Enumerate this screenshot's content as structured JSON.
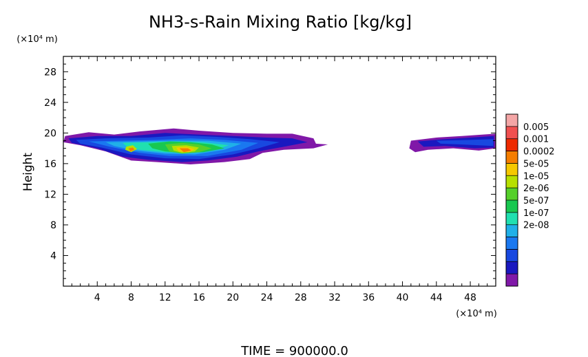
{
  "chart_data": {
    "type": "heatmap",
    "title": "NH3-s-Rain Mixing Ratio [kg/kg]",
    "ylabel": "Height",
    "xlabel": "",
    "y_unit": "(×10⁴ m)",
    "x_unit": "(×10⁴ m)",
    "xlim": [
      0,
      51
    ],
    "ylim": [
      0,
      30
    ],
    "x_ticks": [
      4,
      8,
      12,
      16,
      20,
      24,
      28,
      32,
      36,
      40,
      44,
      48
    ],
    "y_ticks": [
      4,
      8,
      12,
      16,
      20,
      24,
      28
    ],
    "grid": false,
    "legend_position": "right",
    "colorbar": {
      "labels": [
        "0.005",
        "0.001",
        "0.0002",
        "5e-05",
        "1e-05",
        "2e-06",
        "5e-07",
        "1e-07",
        "2e-08"
      ],
      "colors": [
        "#f4a6a6",
        "#f05050",
        "#ee2a00",
        "#f57d00",
        "#f5c800",
        "#b7e000",
        "#55d02a",
        "#18c850",
        "#20e0b0",
        "#20b0e8",
        "#1a78f0",
        "#1848e0",
        "#1a18c0",
        "#8018a8"
      ]
    },
    "contours": [
      {
        "level": 0,
        "points": [
          [
            0.2,
            19.6
          ],
          [
            3,
            20.1
          ],
          [
            6,
            19.8
          ],
          [
            9,
            20.2
          ],
          [
            13,
            20.6
          ],
          [
            16,
            20.3
          ],
          [
            20,
            20.0
          ],
          [
            24,
            19.9
          ],
          [
            27,
            19.9
          ],
          [
            29.5,
            19.3
          ],
          [
            29.8,
            18.6
          ],
          [
            31.2,
            18.5
          ],
          [
            29.5,
            18.0
          ],
          [
            26,
            17.8
          ],
          [
            23.5,
            17.4
          ],
          [
            22,
            16.6
          ],
          [
            19,
            16.2
          ],
          [
            15,
            15.9
          ],
          [
            11,
            16.2
          ],
          [
            8,
            16.4
          ],
          [
            5,
            17.6
          ],
          [
            2,
            18.4
          ],
          [
            0,
            18.8
          ]
        ]
      },
      {
        "level": 0,
        "points": [
          [
            41,
            19.0
          ],
          [
            44,
            19.4
          ],
          [
            47,
            19.6
          ],
          [
            49.5,
            19.8
          ],
          [
            51,
            19.9
          ],
          [
            51,
            18.0
          ],
          [
            49,
            17.7
          ],
          [
            46,
            18.0
          ],
          [
            43,
            17.8
          ],
          [
            41.5,
            17.5
          ],
          [
            40.8,
            18.0
          ]
        ]
      },
      {
        "level": 1,
        "points": [
          [
            0.6,
            19.3
          ],
          [
            4,
            19.6
          ],
          [
            8,
            19.6
          ],
          [
            12,
            20.0
          ],
          [
            16,
            19.8
          ],
          [
            20,
            19.6
          ],
          [
            24,
            19.4
          ],
          [
            27,
            19.3
          ],
          [
            28.8,
            18.8
          ],
          [
            26,
            18.2
          ],
          [
            23,
            17.6
          ],
          [
            20.5,
            16.9
          ],
          [
            17,
            16.4
          ],
          [
            14,
            16.2
          ],
          [
            10,
            16.5
          ],
          [
            7,
            16.9
          ],
          [
            4,
            18.0
          ],
          [
            1,
            18.7
          ]
        ]
      },
      {
        "level": 1,
        "points": [
          [
            41.8,
            18.9
          ],
          [
            45,
            19.2
          ],
          [
            48,
            19.4
          ],
          [
            50.8,
            19.6
          ],
          [
            50.8,
            18.1
          ],
          [
            48.5,
            18.0
          ],
          [
            45,
            18.3
          ],
          [
            42.5,
            18.2
          ]
        ]
      },
      {
        "level": 2,
        "points": [
          [
            1.5,
            19.1
          ],
          [
            5,
            19.3
          ],
          [
            10,
            19.4
          ],
          [
            14,
            19.7
          ],
          [
            18,
            19.5
          ],
          [
            22,
            19.2
          ],
          [
            25.5,
            18.8
          ],
          [
            23,
            18.0
          ],
          [
            20,
            17.2
          ],
          [
            16,
            16.6
          ],
          [
            12,
            16.7
          ],
          [
            8,
            17.2
          ],
          [
            4.5,
            18.1
          ],
          [
            2,
            18.6
          ]
        ]
      },
      {
        "level": 2,
        "points": [
          [
            44,
            19.0
          ],
          [
            48,
            19.1
          ],
          [
            50.7,
            19.2
          ],
          [
            50.7,
            18.3
          ],
          [
            47,
            18.5
          ],
          [
            44.5,
            18.6
          ]
        ]
      },
      {
        "level": 3,
        "points": [
          [
            3,
            18.9
          ],
          [
            7,
            19.0
          ],
          [
            11,
            19.1
          ],
          [
            15,
            19.3
          ],
          [
            19,
            19.1
          ],
          [
            23,
            18.7
          ],
          [
            21,
            17.8
          ],
          [
            17,
            17.0
          ],
          [
            12.5,
            17.0
          ],
          [
            9,
            17.4
          ],
          [
            5.5,
            18.2
          ]
        ]
      },
      {
        "level": 4,
        "points": [
          [
            5,
            18.8
          ],
          [
            9,
            18.9
          ],
          [
            13,
            19.0
          ],
          [
            17,
            19.0
          ],
          [
            21,
            18.6
          ],
          [
            19,
            17.8
          ],
          [
            15.5,
            17.2
          ],
          [
            12,
            17.3
          ],
          [
            8.5,
            17.7
          ],
          [
            6,
            18.3
          ]
        ]
      },
      {
        "level": 5,
        "points": [
          [
            7,
            18.7
          ],
          [
            10,
            18.8
          ],
          [
            13,
            18.9
          ],
          [
            16.5,
            18.8
          ],
          [
            19.5,
            18.4
          ],
          [
            18,
            17.8
          ],
          [
            15,
            17.4
          ],
          [
            12,
            17.5
          ],
          [
            9,
            17.8
          ],
          [
            7.5,
            18.2
          ]
        ]
      },
      {
        "level": 6,
        "points": [
          [
            10,
            18.6
          ],
          [
            12.5,
            18.9
          ],
          [
            15,
            18.8
          ],
          [
            17.5,
            18.5
          ],
          [
            19,
            18.0
          ],
          [
            16.5,
            17.5
          ],
          [
            14,
            17.4
          ],
          [
            12,
            17.6
          ],
          [
            10.5,
            18.0
          ]
        ]
      },
      {
        "level": 7,
        "points": [
          [
            12,
            18.5
          ],
          [
            14,
            18.7
          ],
          [
            16,
            18.5
          ],
          [
            17.5,
            18.0
          ],
          [
            16,
            17.5
          ],
          [
            14,
            17.3
          ],
          [
            12.5,
            17.6
          ]
        ]
      },
      {
        "level": 8,
        "points": [
          [
            12.8,
            18.3
          ],
          [
            14.5,
            18.4
          ],
          [
            16,
            18.1
          ],
          [
            15.5,
            17.6
          ],
          [
            14,
            17.4
          ],
          [
            13,
            17.7
          ]
        ]
      },
      {
        "level": 9,
        "points": [
          [
            13.3,
            18.1
          ],
          [
            14.5,
            18.2
          ],
          [
            15.5,
            17.9
          ],
          [
            14.8,
            17.5
          ],
          [
            13.6,
            17.6
          ]
        ]
      },
      {
        "level": 10,
        "points": [
          [
            13.7,
            18.0
          ],
          [
            14.7,
            18.0
          ],
          [
            15.1,
            17.7
          ],
          [
            14.2,
            17.5
          ]
        ]
      },
      {
        "level": 8,
        "points": [
          [
            7.4,
            18.2
          ],
          [
            8.2,
            18.4
          ],
          [
            8.7,
            17.9
          ],
          [
            8.0,
            17.5
          ],
          [
            7.3,
            17.8
          ]
        ]
      },
      {
        "level": 10,
        "points": [
          [
            7.7,
            18.0
          ],
          [
            8.2,
            18.1
          ],
          [
            8.4,
            17.8
          ],
          [
            7.9,
            17.6
          ]
        ]
      }
    ]
  },
  "footer": {
    "time_label": "TIME = 900000.0"
  }
}
